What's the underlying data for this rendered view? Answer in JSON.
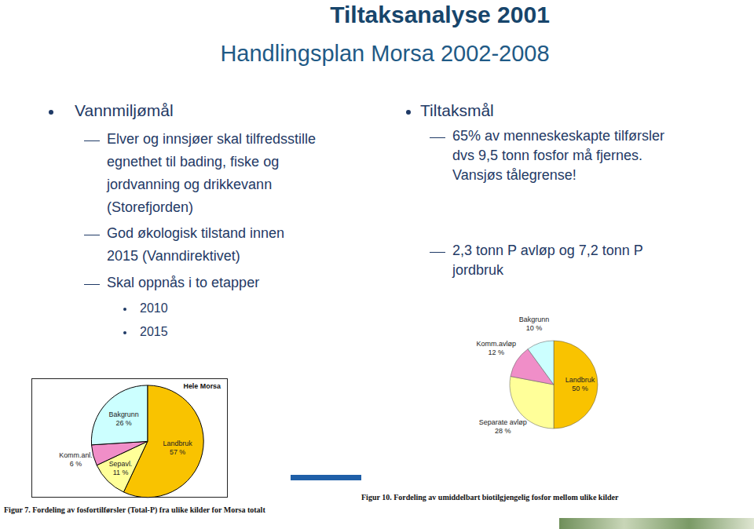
{
  "header": {
    "title": "Tiltaksanalyse 2001",
    "subtitle": "Handlingsplan Morsa 2002-2008"
  },
  "columns": [
    {
      "heading": "Vannmiljømål",
      "items": [
        {
          "lines": [
            "Elver og innsjøer skal tilfredsstille",
            "egnethet til bading, fiske og",
            "jordvanning og drikkevann",
            "(Storefjorden)"
          ]
        },
        {
          "lines": [
            "God økologisk tilstand innen",
            "2015 (Vanndirektivet)"
          ]
        },
        {
          "lines": [
            "Skal oppnås i to etapper"
          ],
          "subitems": [
            "2010",
            "2015"
          ]
        }
      ]
    },
    {
      "heading": "Tiltaksmål",
      "items": [
        {
          "lines": [
            "65% av menneskeskapte tilførsler",
            "dvs 9,5 tonn fosfor  må fjernes.",
            "Vansjøs tålegrense!"
          ]
        },
        {
          "lines": [
            "2,3 tonn P avløp og 7,2 tonn P",
            "jordbruk"
          ]
        }
      ]
    }
  ],
  "chart_data": [
    {
      "type": "pie",
      "title": "Hele Morsa",
      "caption": "Figur 7. Fordeling av fosfortilførsler (Total-P) fra ulike kilder for Morsa totalt",
      "categories": [
        "Landbruk",
        "Sepavl.",
        "Komm.anl.",
        "Bakgrunn"
      ],
      "values": [
        57,
        11,
        6,
        26
      ],
      "value_labels": [
        "57 %",
        "11 %",
        "6 %",
        "26 %"
      ],
      "colors": [
        "#f9c300",
        "#ffff99",
        "#f08ec8",
        "#ccffff"
      ],
      "data_labels": true
    },
    {
      "type": "pie",
      "caption": "Figur 10. Fordeling av umiddelbart biotilgjengelig fosfor mellom ulike kilder",
      "categories": [
        "Landbruk",
        "Separate avløp",
        "Komm.avløp",
        "Bakgrunn"
      ],
      "values": [
        50,
        28,
        12,
        10
      ],
      "value_labels": [
        "50 %",
        "28 %",
        "12 %",
        "10 %"
      ],
      "colors": [
        "#f9c300",
        "#ffff99",
        "#f08ec8",
        "#ccffff"
      ],
      "data_labels": true
    }
  ]
}
